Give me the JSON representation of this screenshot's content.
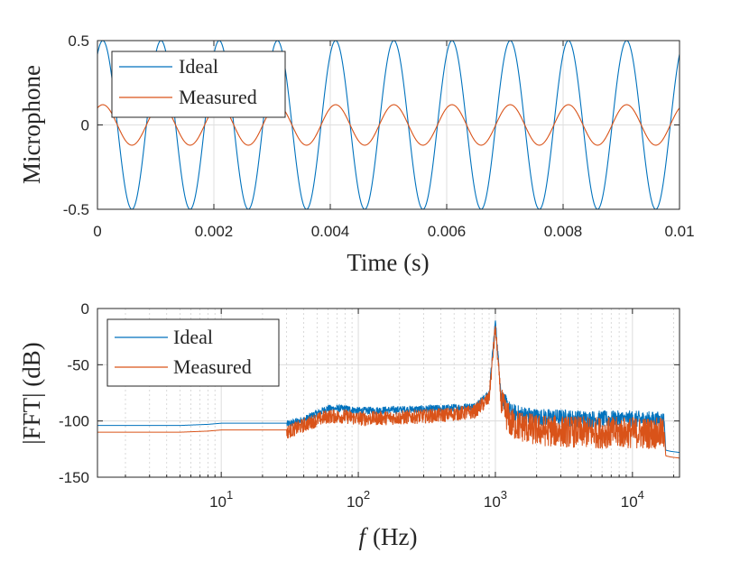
{
  "chart_data": [
    {
      "type": "line",
      "xlabel": "Time (s)",
      "ylabel": "Microphone",
      "xlim": [
        0,
        0.01
      ],
      "ylim": [
        -0.5,
        0.5
      ],
      "xticks": [
        "0",
        "0.002",
        "0.004",
        "0.006",
        "0.008",
        "0.01"
      ],
      "yticks": [
        "-0.5",
        "0",
        "0.5"
      ],
      "grid": true,
      "legend_position": "top-left",
      "series": [
        {
          "name": "Ideal",
          "color": "#0072BD",
          "amplitude": 0.5,
          "frequency_hz": 1000,
          "phase_deg": 57
        },
        {
          "name": "Measured",
          "color": "#D95319",
          "amplitude": 0.12,
          "frequency_hz": 1000,
          "phase_deg": 57
        }
      ]
    },
    {
      "type": "line",
      "xlabel_italic": "f",
      "xlabel_rest": "(Hz)",
      "ylabel": "|FFT| (dB)",
      "xscale": "log",
      "xlim": [
        1.25,
        22050
      ],
      "ylim": [
        -150,
        0
      ],
      "xticks": [
        {
          "base": "10",
          "exp": "1",
          "value": 10
        },
        {
          "base": "10",
          "exp": "2",
          "value": 100
        },
        {
          "base": "10",
          "exp": "3",
          "value": 1000
        },
        {
          "base": "10",
          "exp": "4",
          "value": 10000
        }
      ],
      "yticks": [
        "0",
        "-50",
        "-100",
        "-150"
      ],
      "grid": true,
      "legend_position": "top-left",
      "series": [
        {
          "name": "Ideal",
          "color": "#0072BD",
          "x": [
            1.25,
            2,
            5,
            8,
            10,
            20,
            30,
            40,
            50,
            60,
            80,
            100,
            200,
            400,
            700,
            900,
            1000,
            1100,
            1300,
            2000,
            5000,
            10000,
            17000,
            17500,
            19000,
            22050
          ],
          "y": [
            -104,
            -104,
            -104,
            -103,
            -102,
            -102,
            -102,
            -98,
            -92,
            -88,
            -88,
            -90,
            -89,
            -88,
            -86,
            -75,
            -10,
            -75,
            -90,
            -94,
            -96,
            -96,
            -97,
            -126,
            -127,
            -128
          ]
        },
        {
          "name": "Measured",
          "color": "#D95319",
          "x": [
            1.25,
            2,
            5,
            8,
            10,
            20,
            30,
            40,
            50,
            60,
            80,
            100,
            200,
            400,
            700,
            900,
            1000,
            1100,
            1300,
            2000,
            5000,
            10000,
            17000,
            17500,
            19000,
            22050
          ],
          "y": [
            -110,
            -110,
            -110,
            -109,
            -108,
            -108,
            -108,
            -102,
            -97,
            -94,
            -94,
            -96,
            -95,
            -93,
            -90,
            -78,
            -15,
            -80,
            -98,
            -104,
            -106,
            -106,
            -107,
            -131,
            -132,
            -133
          ]
        }
      ]
    }
  ]
}
